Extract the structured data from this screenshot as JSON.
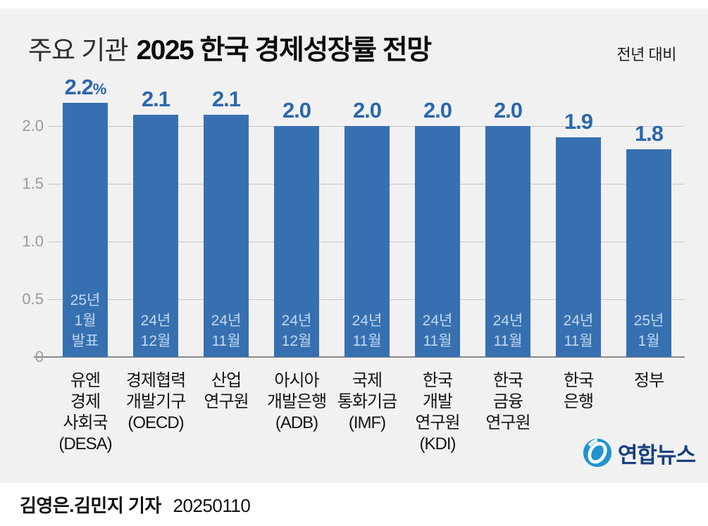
{
  "header": {
    "title_light": "주요 기관",
    "title_bold": "2025 한국 경제성장률 전망",
    "note": "전년 대비"
  },
  "chart_data": {
    "type": "bar",
    "title": "주요 기관 2025 한국 경제성장률 전망",
    "subtitle_note": "전년 대비",
    "categories": [
      "유엔\n경제\n사회국\n(DESA)",
      "경제협력\n개발기구\n(OECD)",
      "산업\n연구원",
      "아시아\n개발은행\n(ADB)",
      "국제\n통화기금\n(IMF)",
      "한국\n개발\n연구원\n(KDI)",
      "한국\n금융\n연구원",
      "한국\n은행",
      "정부"
    ],
    "values": [
      2.2,
      2.1,
      2.1,
      2.0,
      2.0,
      2.0,
      2.0,
      1.9,
      1.8
    ],
    "value_labels": [
      "2.2%",
      "2.1",
      "2.1",
      "2.0",
      "2.0",
      "2.0",
      "2.0",
      "1.9",
      "1.8"
    ],
    "bar_annotations": [
      "25년\n1월\n발표",
      "24년\n12월",
      "24년\n11월",
      "24년\n12월",
      "24년\n11월",
      "24년\n11월",
      "24년\n11월",
      "24년\n11월",
      "25년\n1월"
    ],
    "ylabel": "",
    "xlabel": "",
    "ylim": [
      0,
      2.3
    ],
    "yticks": [
      0,
      0.5,
      1.0,
      1.5,
      2.0
    ],
    "ytick_labels": [
      "0",
      "0.5",
      "1.0",
      "1.5",
      "2.0"
    ],
    "grid": true,
    "legend": false,
    "colors": {
      "bar": "#3670b1",
      "value_label": "#2b67ad",
      "annotation": "#c3d7ee",
      "grid_line": "#c5c5c5",
      "axis_line": "#8a8a8a",
      "tick_label": "#9a9a9a"
    }
  },
  "logo": {
    "text": "연합뉴스"
  },
  "footer": {
    "credit": "김영은.김민지 기자",
    "date": "20250110"
  }
}
